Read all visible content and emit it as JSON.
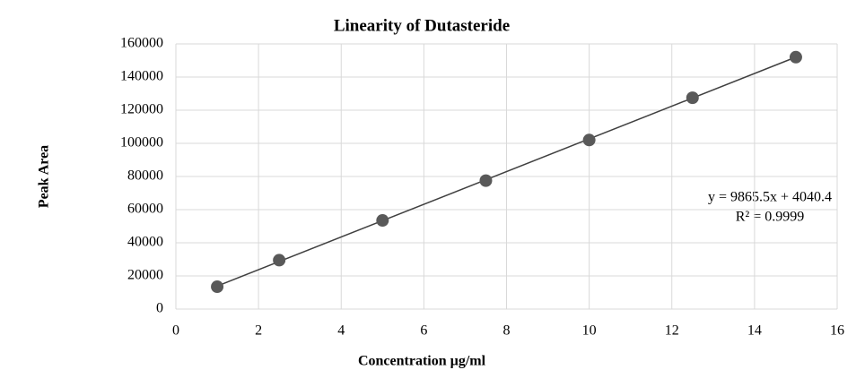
{
  "chart_data": {
    "type": "scatter",
    "title": "Linearity of Dutasteride",
    "x_label": "Concentration µg/ml",
    "y_label": "Peak Area",
    "series": [
      {
        "color": "#595959",
        "x": [
          1,
          2.5,
          5,
          7.5,
          10,
          12.5,
          15
        ],
        "values": [
          13500,
          29500,
          53500,
          77500,
          102000,
          127500,
          152000
        ]
      }
    ],
    "trendline": {
      "slope": 9865.5,
      "intercept": 4040.4,
      "color": "#404040",
      "equation": "y = 9865.5x + 4040.4",
      "r2": "R² = 0.9999"
    },
    "xlim": [
      0,
      16
    ],
    "xticks": [
      0,
      2,
      4,
      6,
      8,
      10,
      12,
      14,
      16
    ],
    "ylim": [
      0,
      160000
    ],
    "yticks": [
      0,
      20000,
      40000,
      60000,
      80000,
      100000,
      120000,
      140000,
      160000
    ],
    "grid": true
  }
}
